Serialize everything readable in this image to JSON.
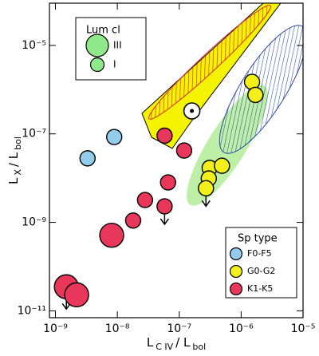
{
  "chart_data": {
    "type": "scatter",
    "xlabel": [
      "L",
      "C IV",
      "/ L",
      "bol"
    ],
    "ylabel": [
      "L",
      "X",
      "/ L",
      "bol"
    ],
    "log_x": true,
    "log_y": true,
    "xlim": [
      8e-10,
      1e-05
    ],
    "ylim": [
      7e-12,
      9e-05
    ],
    "xticks": [
      {
        "value": 1e-09,
        "label": "10⁻⁹"
      },
      {
        "value": 1e-08,
        "label": "10⁻⁸"
      },
      {
        "value": 1e-07,
        "label": "10⁻⁷"
      },
      {
        "value": 1e-06,
        "label": "10⁻⁶"
      },
      {
        "value": 1e-05,
        "label": "10⁻⁵"
      }
    ],
    "yticks": [
      {
        "value": 1e-11,
        "label": "10⁻¹¹"
      },
      {
        "value": 1e-09,
        "label": "10⁻⁹"
      },
      {
        "value": 1e-07,
        "label": "10⁻⁷"
      },
      {
        "value": 1e-05,
        "label": "10⁻⁵"
      }
    ],
    "legend_title": "Sp type",
    "legend_position": "lower right",
    "lum_legend": {
      "title": "Lum cl",
      "classes": [
        "III",
        "I"
      ],
      "color": "#8fe88a",
      "position": "upper left"
    },
    "series": [
      {
        "name": "F0-F5",
        "color": "#93cdee",
        "x": [
          3.3e-09,
          8.9e-09
        ],
        "y": [
          2.8e-08,
          8.5e-08
        ],
        "lum_class": [
          "I",
          "I"
        ],
        "upper_limit": [
          false,
          false
        ]
      },
      {
        "name": "G0-G2",
        "color": "#f2ef1a",
        "x": [
          1.5e-06,
          1.7e-06,
          3.1e-07,
          4.9e-07,
          3e-07,
          2.7e-07
        ],
        "y": [
          1.5e-06,
          7.6e-07,
          1.7e-08,
          1.9e-08,
          9.8e-09,
          5.9e-09
        ],
        "lum_class": [
          "I",
          "I",
          "I",
          "I",
          "I",
          "I"
        ],
        "upper_limit": [
          false,
          false,
          false,
          false,
          false,
          true
        ]
      },
      {
        "name": "K1-K5",
        "color": "#e8375a",
        "x": [
          5.8e-08,
          1.2e-07,
          6.6e-08,
          2.8e-08,
          5.8e-08,
          1.8e-08,
          8.1e-09,
          1.5e-09,
          2.2e-09
        ],
        "y": [
          9.1e-08,
          4.2e-08,
          8e-09,
          3.2e-09,
          2.3e-09,
          1.1e-09,
          5.1e-10,
          3.5e-11,
          2.3e-11
        ],
        "lum_class": [
          "I",
          "I",
          "I",
          "I",
          "I",
          "I",
          "III",
          "III",
          "III"
        ],
        "upper_limit": [
          false,
          false,
          false,
          false,
          true,
          false,
          false,
          true,
          false
        ]
      }
    ],
    "reference_point": {
      "x": 1.6e-07,
      "y": 3.3e-07
    }
  }
}
